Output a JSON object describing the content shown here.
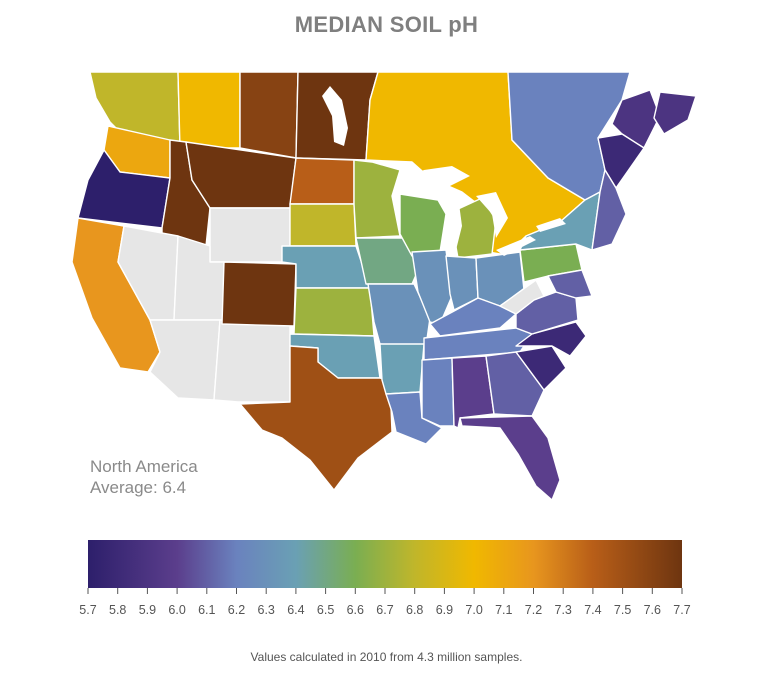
{
  "title": "MEDIAN SOIL pH",
  "average": {
    "line1": "North America",
    "line2": "Average: 6.4"
  },
  "footnote": "Values calculated in 2010 from 4.3 million samples.",
  "colors": {
    "ph_5_7": "#2d1f6b",
    "ph_6_0": "#5b3e8c",
    "ph_6_2": "#6a82be",
    "ph_6_4": "#6aa0b4",
    "ph_6_6": "#7aae52",
    "ph_6_8": "#c0b62a",
    "ph_7_0": "#f0b800",
    "ph_7_2": "#e8961e",
    "ph_7_4": "#b85e18",
    "ph_7_7": "#6e3510",
    "no_data": "#e6e6e6"
  },
  "colorbar": {
    "min": 5.7,
    "max": 7.7,
    "ticks": [
      "5.7",
      "5.8",
      "5.9",
      "6.0",
      "6.1",
      "6.2",
      "6.3",
      "6.4",
      "6.5",
      "6.6",
      "6.7",
      "6.8",
      "6.9",
      "7.0",
      "7.1",
      "7.2",
      "7.3",
      "7.4",
      "7.5",
      "7.6",
      "7.7"
    ]
  },
  "regions": [
    {
      "name": "British Columbia",
      "ph": 6.8
    },
    {
      "name": "Alberta",
      "ph": 7.0
    },
    {
      "name": "Saskatchewan",
      "ph": 7.6
    },
    {
      "name": "Manitoba",
      "ph": 7.7
    },
    {
      "name": "Ontario",
      "ph": 7.0
    },
    {
      "name": "Quebec",
      "ph": 6.2
    },
    {
      "name": "New Brunswick",
      "ph": 5.9
    },
    {
      "name": "Nova Scotia",
      "ph": 5.9
    },
    {
      "name": "Washington",
      "ph": 7.1
    },
    {
      "name": "Oregon",
      "ph": 5.7
    },
    {
      "name": "California",
      "ph": 7.2
    },
    {
      "name": "Idaho",
      "ph": 7.7
    },
    {
      "name": "Montana",
      "ph": 7.7
    },
    {
      "name": "Wyoming",
      "ph": null
    },
    {
      "name": "Nevada",
      "ph": null
    },
    {
      "name": "Utah",
      "ph": null
    },
    {
      "name": "Arizona",
      "ph": null
    },
    {
      "name": "New Mexico",
      "ph": null
    },
    {
      "name": "Colorado",
      "ph": 7.7
    },
    {
      "name": "North Dakota",
      "ph": 7.4
    },
    {
      "name": "South Dakota",
      "ph": 6.8
    },
    {
      "name": "Nebraska",
      "ph": 6.4
    },
    {
      "name": "Kansas",
      "ph": 6.7
    },
    {
      "name": "Oklahoma",
      "ph": 6.4
    },
    {
      "name": "Texas",
      "ph": 7.5
    },
    {
      "name": "Minnesota",
      "ph": 6.7
    },
    {
      "name": "Iowa",
      "ph": 6.5
    },
    {
      "name": "Missouri",
      "ph": 6.3
    },
    {
      "name": "Arkansas",
      "ph": 6.4
    },
    {
      "name": "Louisiana",
      "ph": 6.2
    },
    {
      "name": "Wisconsin",
      "ph": 6.6
    },
    {
      "name": "Illinois",
      "ph": 6.3
    },
    {
      "name": "Michigan",
      "ph": 6.7
    },
    {
      "name": "Indiana",
      "ph": 6.3
    },
    {
      "name": "Ohio",
      "ph": 6.3
    },
    {
      "name": "Kentucky",
      "ph": 6.2
    },
    {
      "name": "Tennessee",
      "ph": 6.2
    },
    {
      "name": "Mississippi",
      "ph": 6.2
    },
    {
      "name": "Alabama",
      "ph": 6.0
    },
    {
      "name": "Georgia",
      "ph": 6.1
    },
    {
      "name": "Florida",
      "ph": 6.0
    },
    {
      "name": "South Carolina",
      "ph": 5.8
    },
    {
      "name": "North Carolina",
      "ph": 5.8
    },
    {
      "name": "Virginia",
      "ph": 6.1
    },
    {
      "name": "West Virginia",
      "ph": null
    },
    {
      "name": "Pennsylvania",
      "ph": 6.6
    },
    {
      "name": "New York",
      "ph": 6.4
    },
    {
      "name": "Maine",
      "ph": 5.8
    },
    {
      "name": "New England",
      "ph": 6.1
    }
  ]
}
